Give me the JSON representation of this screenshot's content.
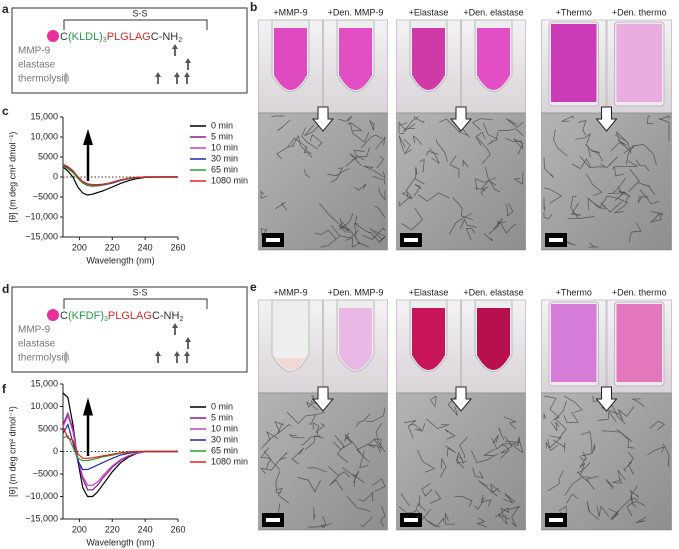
{
  "panel_labels": [
    "a",
    "b",
    "c",
    "d",
    "e",
    "f"
  ],
  "schemes": [
    {
      "bridge": "S-S",
      "parts": [
        {
          "text": "C",
          "color": "#333333"
        },
        {
          "text": "(KLDL)",
          "color": "#2a9a4a"
        },
        {
          "text": "3",
          "color": "#2a9a4a",
          "sub": true
        },
        {
          "text": "PLGLAG",
          "color": "#d0302a"
        },
        {
          "text": "C-NH",
          "color": "#333333"
        },
        {
          "text": "2",
          "color": "#333333",
          "sub": true
        }
      ],
      "enzymes": [
        "MMP-9",
        "elastase",
        "thermolysin"
      ]
    },
    {
      "bridge": "S-S",
      "parts": [
        {
          "text": "C",
          "color": "#333333"
        },
        {
          "text": "(KFDF)",
          "color": "#2a9a4a"
        },
        {
          "text": "3",
          "color": "#2a9a4a",
          "sub": true
        },
        {
          "text": "PLGLAG",
          "color": "#d0302a"
        },
        {
          "text": "C-NH",
          "color": "#333333"
        },
        {
          "text": "2",
          "color": "#333333",
          "sub": true
        }
      ],
      "enzymes": [
        "MMP-9",
        "elastase",
        "thermolysin"
      ]
    }
  ],
  "image_panels": [
    {
      "labels": [
        "+MMP-9",
        "+Den. MMP-9",
        "+Elastase",
        "+Den. elastase",
        "+Thermo",
        "+Den. thermo"
      ]
    },
    {
      "labels": [
        "+MMP-9",
        "+Den. MMP-9",
        "+Elastase",
        "+Den. elastase",
        "+Thermo",
        "+Den. thermo"
      ]
    }
  ],
  "chart_data": [
    {
      "type": "line",
      "xlabel": "Wavelength (nm)",
      "ylabel": "[θ] (m deg cm² dmol⁻¹)",
      "x": [
        190,
        193,
        196,
        199,
        202,
        205,
        208,
        211,
        214,
        217,
        220,
        225,
        230,
        235,
        240,
        250,
        260
      ],
      "xlim": [
        190,
        260
      ],
      "xticks": [
        200,
        220,
        240,
        260
      ],
      "ylim": [
        -15000,
        15000
      ],
      "yticks": [
        {
          "value": 15000,
          "label": "15,000"
        },
        {
          "value": 10000,
          "label": "10,000"
        },
        5000,
        0,
        {
          "value": -5000,
          "label": "−5000"
        },
        {
          "value": -10000,
          "label": "−10,000"
        },
        {
          "value": -15000,
          "label": "−15,000"
        }
      ],
      "series": [
        {
          "name": "0 min",
          "color": "#000000",
          "values": [
            2500,
            1500,
            0,
            -2500,
            -4000,
            -4500,
            -4300,
            -3900,
            -3500,
            -3000,
            -2500,
            -1600,
            -900,
            -400,
            -100,
            0,
            0
          ]
        },
        {
          "name": "5 min",
          "color": "#8b1a8b",
          "values": [
            3000,
            2500,
            1500,
            0,
            -1200,
            -1800,
            -2000,
            -2000,
            -1900,
            -1700,
            -1400,
            -800,
            -400,
            -100,
            0,
            0,
            0
          ]
        },
        {
          "name": "10 min",
          "color": "#c040c0",
          "values": [
            2800,
            2300,
            1300,
            -200,
            -1400,
            -2000,
            -2200,
            -2200,
            -2000,
            -1800,
            -1500,
            -900,
            -400,
            -150,
            0,
            0,
            0
          ]
        },
        {
          "name": "30 min",
          "color": "#1a2aa8",
          "values": [
            2700,
            2200,
            1200,
            -300,
            -1500,
            -2100,
            -2300,
            -2200,
            -2000,
            -1800,
            -1500,
            -900,
            -400,
            -100,
            0,
            0,
            0
          ]
        },
        {
          "name": "65 min",
          "color": "#2aa02a",
          "values": [
            2600,
            2100,
            1100,
            -300,
            -1500,
            -2000,
            -2200,
            -2100,
            -1900,
            -1700,
            -1400,
            -800,
            -400,
            -100,
            0,
            0,
            0
          ]
        },
        {
          "name": "1080 min",
          "color": "#e02020",
          "values": [
            3200,
            2600,
            1600,
            100,
            -1100,
            -1700,
            -1900,
            -1900,
            -1800,
            -1600,
            -1300,
            -700,
            -300,
            -100,
            0,
            0,
            0
          ]
        }
      ]
    },
    {
      "type": "line",
      "xlabel": "Wavelength (nm)",
      "ylabel": "[θ] (m deg cm² dmol⁻¹)",
      "x": [
        190,
        193,
        196,
        199,
        202,
        205,
        208,
        211,
        214,
        217,
        220,
        225,
        230,
        235,
        240,
        250,
        260
      ],
      "xlim": [
        190,
        260
      ],
      "xticks": [
        200,
        220,
        240,
        260
      ],
      "ylim": [
        -15000,
        15000
      ],
      "yticks": [
        {
          "value": 15000,
          "label": "15,000"
        },
        {
          "value": 10000,
          "label": "10,000"
        },
        5000,
        0,
        {
          "value": -5000,
          "label": "−5000"
        },
        {
          "value": -10000,
          "label": "−10,000"
        },
        {
          "value": -15000,
          "label": "−15,000"
        }
      ],
      "series": [
        {
          "name": "0 min",
          "color": "#000000",
          "values": [
            13000,
            12000,
            6000,
            -2000,
            -8000,
            -10000,
            -10000,
            -9000,
            -7500,
            -6000,
            -4500,
            -2500,
            -1200,
            -400,
            0,
            0,
            0
          ]
        },
        {
          "name": "5 min",
          "color": "#8b1a8b",
          "values": [
            6000,
            8500,
            5000,
            -1500,
            -6000,
            -8500,
            -8500,
            -7500,
            -6000,
            -4800,
            -3500,
            -2000,
            -1000,
            -300,
            0,
            0,
            0
          ]
        },
        {
          "name": "10 min",
          "color": "#c040c0",
          "values": [
            5500,
            8000,
            4500,
            -1500,
            -5500,
            -7500,
            -7500,
            -6800,
            -5500,
            -4300,
            -3200,
            -1800,
            -900,
            -300,
            0,
            0,
            0
          ]
        },
        {
          "name": "30 min",
          "color": "#1a2aa8",
          "values": [
            4000,
            6000,
            2000,
            -2000,
            -4000,
            -4000,
            -3500,
            -3000,
            -2500,
            -2000,
            -1500,
            -800,
            -400,
            -100,
            0,
            0,
            0
          ]
        },
        {
          "name": "65 min",
          "color": "#2aa02a",
          "values": [
            3000,
            3500,
            1000,
            -1500,
            -2000,
            -2000,
            -1800,
            -1500,
            -1200,
            -1000,
            -800,
            -400,
            -200,
            0,
            0,
            0,
            0
          ]
        },
        {
          "name": "1080 min",
          "color": "#e02020",
          "values": [
            5500,
            3000,
            2500,
            -500,
            -1500,
            -1500,
            -1400,
            -1200,
            -1000,
            -800,
            -600,
            -300,
            -100,
            0,
            0,
            0,
            0
          ]
        }
      ]
    }
  ]
}
